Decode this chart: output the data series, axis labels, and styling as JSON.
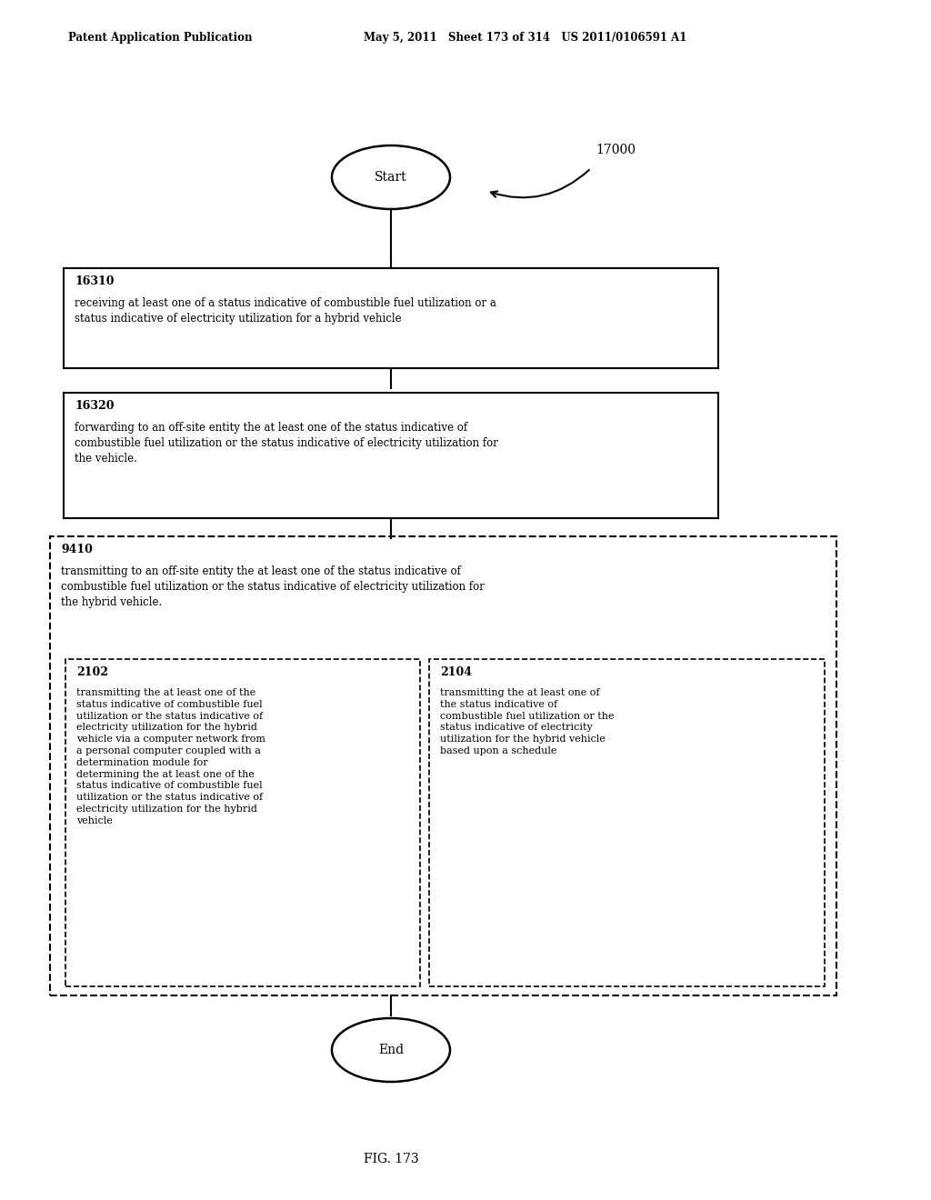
{
  "header_left": "Patent Application Publication",
  "header_mid": "May 5, 2011   Sheet 173 of 314   US 2011/0106591 A1",
  "fig_label": "FIG. 173",
  "diagram_label": "17000",
  "start_label": "Start",
  "end_label": "End",
  "box1_id": "16310",
  "box1_text": "receiving at least one of a status indicative of combustible fuel utilization or a\nstatus indicative of electricity utilization for a hybrid vehicle",
  "box2_id": "16320",
  "box2_text": "forwarding to an off-site entity the at least one of the status indicative of\ncombustible fuel utilization or the status indicative of electricity utilization for\nthe vehicle.",
  "outer_id": "9410",
  "outer_text": "transmitting to an off-site entity the at least one of the status indicative of\ncombustible fuel utilization or the status indicative of electricity utilization for\nthe hybrid vehicle.",
  "inner1_id": "2102",
  "inner1_text": "transmitting the at least one of the\nstatus indicative of combustible fuel\nutilization or the status indicative of\nelectricity utilization for the hybrid\nvehicle via a computer network from\na personal computer coupled with a\ndetermination module for\ndetermining the at least one of the\nstatus indicative of combustible fuel\nutilization or the status indicative of\nelectricity utilization for the hybrid\nvehicle",
  "inner2_id": "2104",
  "inner2_text": "transmitting the at least one of\nthe status indicative of\ncombustible fuel utilization or the\nstatus indicative of electricity\nutilization for the hybrid vehicle\nbased upon a schedule",
  "bg_color": "#ffffff",
  "text_color": "#000000",
  "line_color": "#000000"
}
